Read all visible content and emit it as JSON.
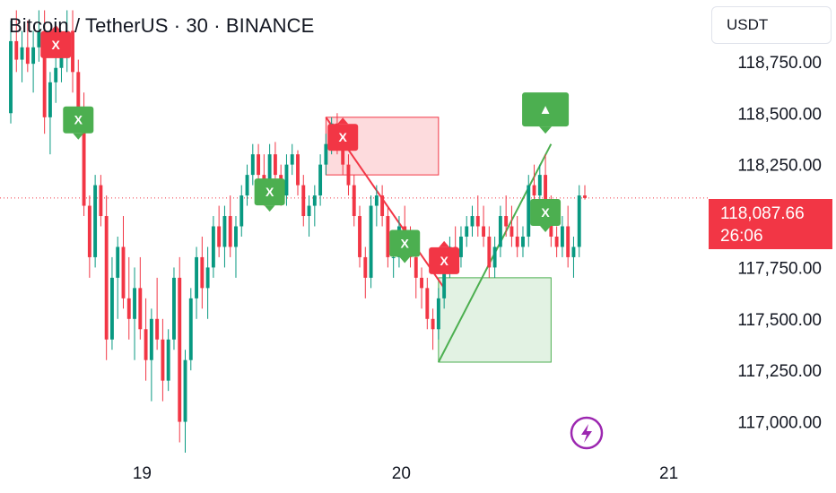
{
  "header": {
    "title": "Bitcoin / TetherUS · 30 · BINANCE",
    "currency_button": "USDT"
  },
  "last_price": {
    "price": "118,087.66",
    "countdown": "26:06"
  },
  "colors": {
    "up": "#089981",
    "down": "#f23645",
    "signal_buy": "#4caf50",
    "signal_sell": "#f23645",
    "accent_purple": "#9c27b0"
  },
  "icons": {
    "replay": "lightning-icon",
    "long_arrow": "triangle-up-icon"
  },
  "chart_data": {
    "type": "candlestick",
    "title": "Bitcoin / TetherUS · 30 · BINANCE",
    "ylim": [
      116850,
      119050
    ],
    "y_ticks": [
      {
        "value": 118750,
        "label": "118,750.00"
      },
      {
        "value": 118500,
        "label": "118,500.00"
      },
      {
        "value": 118250,
        "label": "118,250.00"
      },
      {
        "value": 117750,
        "label": "117,750.00"
      },
      {
        "value": 117500,
        "label": "117,500.00"
      },
      {
        "value": 117250,
        "label": "117,250.00"
      },
      {
        "value": 117000,
        "label": "117,000.00"
      }
    ],
    "x_ticks": [
      {
        "pos": 0.17,
        "label": "19"
      },
      {
        "pos": 0.48,
        "label": "20"
      },
      {
        "pos": 0.8,
        "label": "21"
      }
    ],
    "grid": false,
    "last_price_line": 118087.66,
    "candles": [
      [
        118500,
        118950,
        118450,
        118850
      ],
      [
        118850,
        119000,
        118700,
        118760
      ],
      [
        118760,
        118900,
        118650,
        118820
      ],
      [
        118820,
        118950,
        118700,
        118740
      ],
      [
        118740,
        118900,
        118600,
        118820
      ],
      [
        118820,
        119000,
        118750,
        118900
      ],
      [
        118900,
        119000,
        118400,
        118480
      ],
      [
        118480,
        118700,
        118300,
        118650
      ],
      [
        118650,
        118850,
        118550,
        118720
      ],
      [
        118720,
        118900,
        118650,
        118800
      ],
      [
        118800,
        119000,
        118700,
        118900
      ],
      [
        118900,
        119000,
        118600,
        118700
      ],
      [
        118700,
        118760,
        118450,
        118500
      ],
      [
        118500,
        118600,
        118000,
        118050
      ],
      [
        118050,
        118100,
        117700,
        117800
      ],
      [
        117800,
        118200,
        117750,
        118150
      ],
      [
        118150,
        118200,
        117950,
        118000
      ],
      [
        118000,
        118100,
        117300,
        117400
      ],
      [
        117400,
        117800,
        117350,
        117700
      ],
      [
        117700,
        117900,
        117500,
        117850
      ],
      [
        117850,
        118000,
        117550,
        117600
      ],
      [
        117600,
        117800,
        117400,
        117500
      ],
      [
        117500,
        117750,
        117300,
        117650
      ],
      [
        117650,
        117800,
        117400,
        117450
      ],
      [
        117450,
        117600,
        117200,
        117300
      ],
      [
        117300,
        117550,
        117100,
        117500
      ],
      [
        117500,
        117700,
        117350,
        117400
      ],
      [
        117400,
        117500,
        117100,
        117200
      ],
      [
        117200,
        117450,
        117150,
        117400
      ],
      [
        117400,
        117750,
        117350,
        117700
      ],
      [
        117700,
        117800,
        116900,
        117000
      ],
      [
        117000,
        117350,
        116850,
        117300
      ],
      [
        117300,
        117650,
        117250,
        117600
      ],
      [
        117600,
        117850,
        117500,
        117800
      ],
      [
        117800,
        117900,
        117550,
        117650
      ],
      [
        117650,
        117850,
        117500,
        117750
      ],
      [
        117750,
        118000,
        117700,
        117950
      ],
      [
        117950,
        118050,
        117800,
        117850
      ],
      [
        117850,
        118050,
        117750,
        118000
      ],
      [
        118000,
        118100,
        117800,
        117850
      ],
      [
        117850,
        118000,
        117700,
        117950
      ],
      [
        117950,
        118150,
        117900,
        118100
      ],
      [
        118100,
        118250,
        118050,
        118200
      ],
      [
        118200,
        118350,
        118150,
        118300
      ],
      [
        118300,
        118350,
        118150,
        118200
      ],
      [
        118200,
        118300,
        118050,
        118150
      ],
      [
        118150,
        118350,
        118100,
        118300
      ],
      [
        118300,
        118360,
        118150,
        118200
      ],
      [
        118200,
        118250,
        118050,
        118100
      ],
      [
        118100,
        118300,
        118050,
        118250
      ],
      [
        118250,
        118350,
        118200,
        118300
      ],
      [
        118300,
        118320,
        118100,
        118150
      ],
      [
        118150,
        118200,
        117950,
        118000
      ],
      [
        118000,
        118100,
        117900,
        118050
      ],
      [
        118050,
        118150,
        117950,
        118100
      ],
      [
        118100,
        118300,
        118050,
        118250
      ],
      [
        118250,
        118400,
        118200,
        118350
      ],
      [
        118350,
        118480,
        118300,
        118450
      ],
      [
        118450,
        118500,
        118300,
        118350
      ],
      [
        118350,
        118400,
        118200,
        118250
      ],
      [
        118250,
        118300,
        118100,
        118150
      ],
      [
        118150,
        118200,
        117950,
        118000
      ],
      [
        118000,
        118050,
        117750,
        117800
      ],
      [
        117800,
        117850,
        117600,
        117700
      ],
      [
        117700,
        118100,
        117650,
        118050
      ],
      [
        118050,
        118150,
        117950,
        118100
      ],
      [
        118100,
        118150,
        117950,
        118000
      ],
      [
        118000,
        118050,
        117750,
        117800
      ],
      [
        117800,
        117850,
        117700,
        117800
      ],
      [
        117800,
        118000,
        117750,
        117950
      ],
      [
        117950,
        118050,
        117850,
        117900
      ],
      [
        117900,
        117950,
        117750,
        117800
      ],
      [
        117800,
        117850,
        117600,
        117700
      ],
      [
        117700,
        117750,
        117550,
        117650
      ],
      [
        117650,
        117700,
        117450,
        117500
      ],
      [
        117500,
        117550,
        117350,
        117450
      ],
      [
        117450,
        117650,
        117400,
        117600
      ],
      [
        117600,
        117800,
        117550,
        117750
      ],
      [
        117750,
        117900,
        117700,
        117850
      ],
      [
        117850,
        117950,
        117750,
        117800
      ],
      [
        117800,
        117950,
        117750,
        117900
      ],
      [
        117900,
        118000,
        117850,
        117950
      ],
      [
        117950,
        118050,
        117900,
        118000
      ],
      [
        118000,
        118100,
        117900,
        117950
      ],
      [
        117950,
        118050,
        117850,
        117900
      ],
      [
        117900,
        117950,
        117700,
        117750
      ],
      [
        117750,
        117900,
        117700,
        117850
      ],
      [
        117850,
        118050,
        117800,
        118000
      ],
      [
        118000,
        118100,
        117900,
        117950
      ],
      [
        117950,
        118050,
        117850,
        117900
      ],
      [
        117900,
        118000,
        117800,
        117850
      ],
      [
        117850,
        117950,
        117800,
        117900
      ],
      [
        117900,
        118200,
        117850,
        118150
      ],
      [
        118150,
        118250,
        118050,
        118100
      ],
      [
        118100,
        118250,
        118050,
        118200
      ],
      [
        118200,
        118300,
        118000,
        118050
      ],
      [
        118050,
        118100,
        117850,
        117900
      ],
      [
        117900,
        117950,
        117800,
        117850
      ],
      [
        117850,
        118000,
        117800,
        117950
      ],
      [
        117950,
        118050,
        117750,
        117800
      ],
      [
        117800,
        117900,
        117700,
        117850
      ],
      [
        117850,
        118150,
        117800,
        118100
      ],
      [
        118100,
        118150,
        118080,
        118087.66
      ]
    ],
    "annotations": [
      {
        "type": "signal",
        "kind": "sell",
        "label": "X",
        "index": 8
      },
      {
        "type": "signal",
        "kind": "buy",
        "label": "X",
        "index": 12
      },
      {
        "type": "signal",
        "kind": "buy",
        "label": "X",
        "index": 46
      },
      {
        "type": "signal",
        "kind": "sell",
        "label": "X",
        "index": 59
      },
      {
        "type": "signal",
        "kind": "buy",
        "label": "X",
        "index": 70
      },
      {
        "type": "signal",
        "kind": "sell",
        "label": "X",
        "index": 77
      },
      {
        "type": "signal",
        "kind": "buy",
        "label": "X",
        "index": 95
      },
      {
        "type": "signal",
        "kind": "long",
        "label": "▲",
        "index": 95
      },
      {
        "type": "short_target_zone",
        "from_index": 56,
        "to_index": 76,
        "low": 118200,
        "high": 118480
      },
      {
        "type": "long_target_zone",
        "from_index": 76,
        "to_index": 96,
        "low": 117290,
        "high": 117700
      },
      {
        "type": "trend_line",
        "kind": "down",
        "start": [
          56,
          118480
        ],
        "end": [
          77,
          117650
        ]
      },
      {
        "type": "trend_line",
        "kind": "up",
        "start": [
          76,
          117290
        ],
        "end": [
          96,
          118350
        ]
      }
    ]
  }
}
